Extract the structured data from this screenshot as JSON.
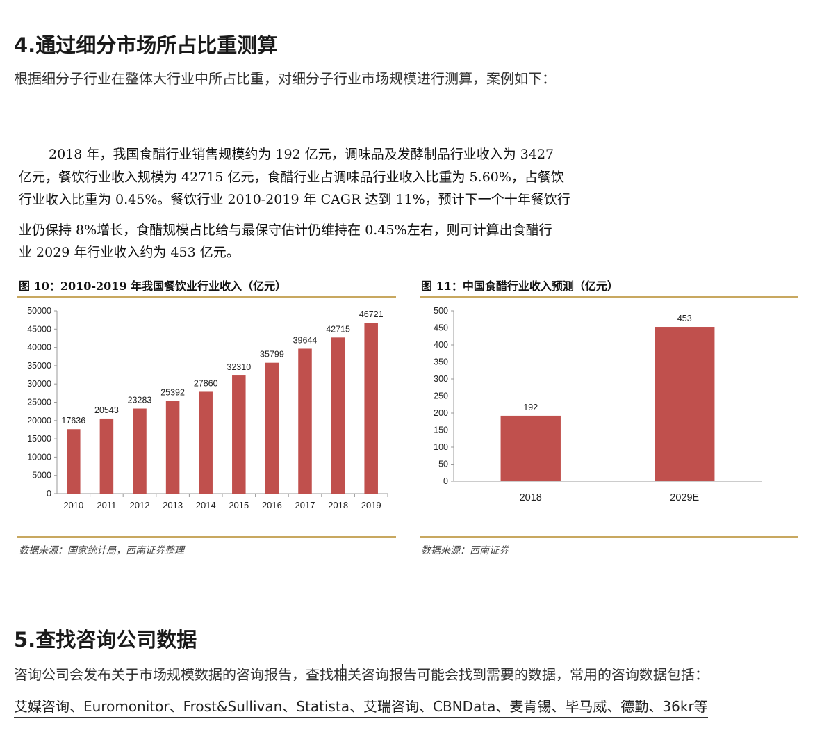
{
  "section4": {
    "heading": "4.通过细分市场所占比重测算",
    "intro": "根据细分子行业在整体大行业中所占比重，对细分子行业市场规模进行测算，案例如下："
  },
  "excerpt": {
    "lines": [
      "2018 年，我国食醋行业销售规模约为 192 亿元，调味品及发酵制品行业收入为 3427",
      "亿元，餐饮行业收入规模为 42715 亿元，食醋行业占调味品行业收入比重为 5.60%，占餐饮",
      "行业收入比重为 0.45%。餐饮行业 2010-2019 年 CAGR 达到 11%，预计下一个十年餐饮行",
      "业仍保持 8%增长，食醋规模占比给与最保守估计仍维持在 0.45%左右，则可计算出食醋行",
      "业 2029 年行业收入约为 453 亿元。"
    ]
  },
  "figure10": {
    "title": "图 10：2010-2019 年我国餐饮业行业收入（亿元）",
    "source": "数据来源：国家统计局，西南证券整理"
  },
  "figure11": {
    "title": "图 11：中国食醋行业收入预测（亿元）",
    "source": "数据来源：西南证券"
  },
  "chart_data": [
    {
      "type": "bar",
      "categories": [
        "2010",
        "2011",
        "2012",
        "2013",
        "2014",
        "2015",
        "2016",
        "2017",
        "2018",
        "2019"
      ],
      "values": [
        17636,
        20543,
        23283,
        25392,
        27860,
        32310,
        35799,
        39644,
        42715,
        46721
      ],
      "ylim": [
        0,
        50000
      ],
      "yticks": [
        0,
        5000,
        10000,
        15000,
        20000,
        25000,
        30000,
        35000,
        40000,
        45000,
        50000
      ],
      "grid": false,
      "bar_color": "#c0504d"
    },
    {
      "type": "bar",
      "categories": [
        "2018",
        "2029E"
      ],
      "values": [
        192,
        453
      ],
      "ylim": [
        0,
        500
      ],
      "yticks": [
        0,
        50,
        100,
        150,
        200,
        250,
        300,
        350,
        400,
        450,
        500
      ],
      "grid": false,
      "bar_color": "#c0504d"
    }
  ],
  "section5": {
    "heading": "5.查找咨询公司数据",
    "text": "咨询公司会发布关于市场规模数据的咨询报告，查找相关咨询报告可能会找到需要的数据，常用的咨询数据包括：",
    "links": "艾媒咨询、Euromonitor、Frost&Sullivan、Statista、艾瑞咨询、CBNData、麦肯锡、毕马威、德勤、36kr等"
  }
}
